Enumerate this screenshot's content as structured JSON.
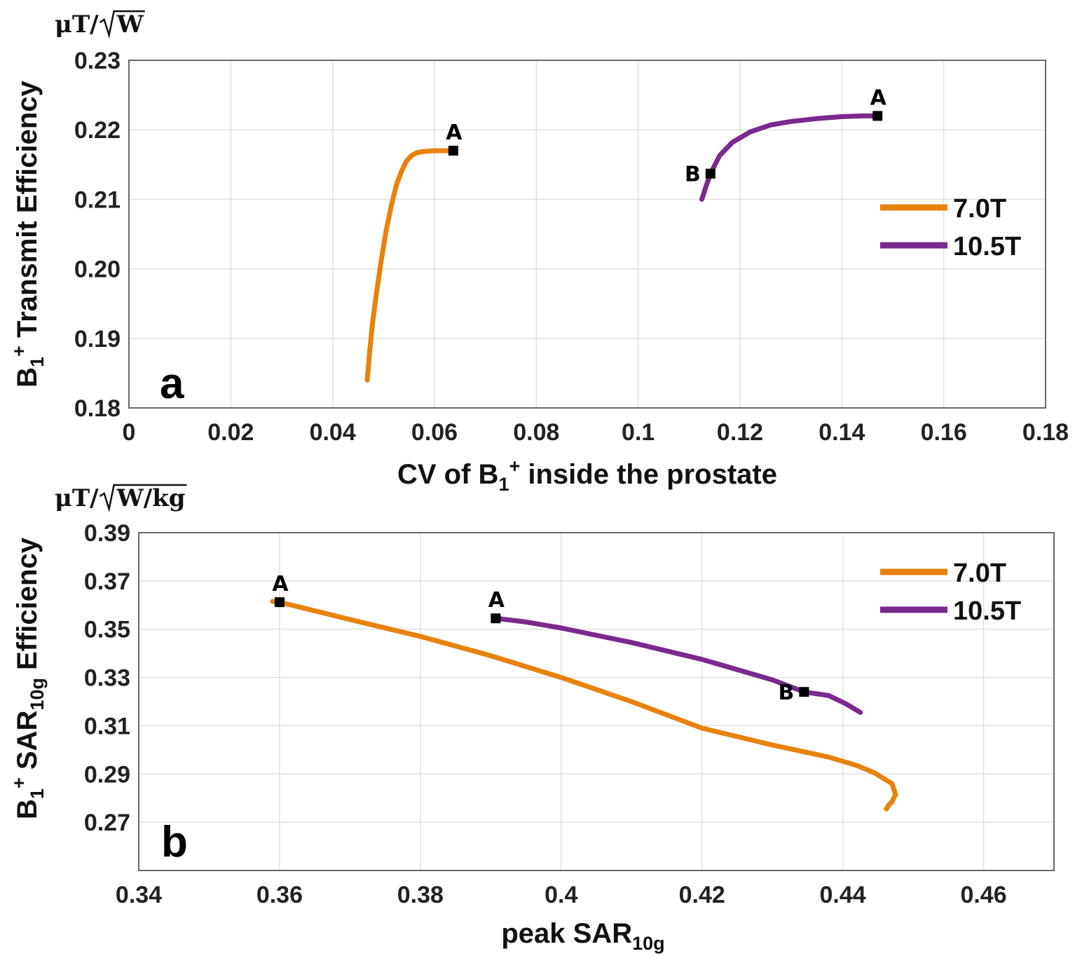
{
  "chart_data": [
    {
      "type": "line",
      "panel_label": "a",
      "xlabel": {
        "pre": "CV of B",
        "sub": "1",
        "sup": "+",
        "post": " inside the prostate"
      },
      "ylabel": {
        "pre": "B",
        "sub": "1",
        "sup": "+",
        "post": " Transmit Efficiency"
      },
      "y_unit": {
        "pre": "μT/",
        "radicand": "W"
      },
      "xlim": [
        0,
        0.18
      ],
      "ylim": [
        0.18,
        0.23
      ],
      "xticks": [
        0,
        0.02,
        0.04,
        0.06,
        0.08,
        0.1,
        0.12,
        0.14,
        0.16,
        0.18
      ],
      "xtick_labels": [
        "0",
        "0.02",
        "0.04",
        "0.06",
        "0.08",
        "0.1",
        "0.12",
        "0.14",
        "0.16",
        "0.18"
      ],
      "yticks": [
        0.18,
        0.19,
        0.2,
        0.21,
        0.22,
        0.23
      ],
      "ytick_labels": [
        "0.18",
        "0.19",
        "0.20",
        "0.21",
        "0.22",
        "0.23"
      ],
      "grid": true,
      "legend_position": "right",
      "series": [
        {
          "name": "7.0T",
          "color": "#E8820C",
          "x": [
            0.0468,
            0.0472,
            0.0478,
            0.0486,
            0.0495,
            0.0505,
            0.0515,
            0.0525,
            0.0535,
            0.0545,
            0.0555,
            0.0565,
            0.058,
            0.06,
            0.062,
            0.0637
          ],
          "y": [
            0.184,
            0.1875,
            0.192,
            0.1965,
            0.201,
            0.2055,
            0.209,
            0.212,
            0.214,
            0.2155,
            0.2163,
            0.2167,
            0.2169,
            0.217,
            0.217,
            0.217
          ],
          "markers": [
            {
              "label": "A",
              "x": 0.0637,
              "y": 0.217
            }
          ]
        },
        {
          "name": "10.5T",
          "color": "#7A2A8C",
          "x": [
            0.1125,
            0.1133,
            0.1142,
            0.116,
            0.1185,
            0.122,
            0.126,
            0.13,
            0.135,
            0.14,
            0.144,
            0.147
          ],
          "y": [
            0.21,
            0.2118,
            0.2137,
            0.2163,
            0.2182,
            0.2197,
            0.2207,
            0.2212,
            0.2216,
            0.2219,
            0.222,
            0.222
          ],
          "markers": [
            {
              "label": "A",
              "x": 0.147,
              "y": 0.222
            },
            {
              "label": "B",
              "x": 0.1142,
              "y": 0.2137
            }
          ]
        }
      ]
    },
    {
      "type": "line",
      "panel_label": "b",
      "xlabel": {
        "pre": "peak SAR",
        "sub": "10g",
        "sup": "",
        "post": ""
      },
      "ylabel": {
        "pre": "B",
        "sub": "1",
        "sup": "+",
        "mid": " SAR",
        "sub2": "10g",
        "post": " Efficiency"
      },
      "y_unit": {
        "pre": "μT/",
        "radicand": "W/kg"
      },
      "xlim": [
        0.34,
        0.47
      ],
      "ylim": [
        0.25,
        0.39
      ],
      "xticks": [
        0.34,
        0.36,
        0.38,
        0.4,
        0.42,
        0.44,
        0.46
      ],
      "xtick_labels": [
        "0.34",
        "0.36",
        "0.38",
        "0.4",
        "0.42",
        "0.44",
        "0.46"
      ],
      "yticks": [
        0.27,
        0.29,
        0.31,
        0.33,
        0.35,
        0.37,
        0.39
      ],
      "ytick_labels": [
        "0.27",
        "0.29",
        "0.31",
        "0.33",
        "0.35",
        "0.37",
        "0.39"
      ],
      "grid": true,
      "legend_position": "top-right",
      "series": [
        {
          "name": "7.0T",
          "color": "#E8820C",
          "x": [
            0.359,
            0.36,
            0.37,
            0.38,
            0.39,
            0.4,
            0.41,
            0.42,
            0.43,
            0.438,
            0.442,
            0.4445,
            0.447,
            0.4475,
            0.447,
            0.4465,
            0.4462
          ],
          "y": [
            0.3615,
            0.3612,
            0.354,
            0.347,
            0.339,
            0.33,
            0.32,
            0.309,
            0.302,
            0.297,
            0.2935,
            0.2905,
            0.286,
            0.2815,
            0.2785,
            0.277,
            0.2755
          ],
          "markers": [
            {
              "label": "A",
              "x": 0.36,
              "y": 0.3612
            }
          ]
        },
        {
          "name": "10.5T",
          "color": "#7A2A8C",
          "x": [
            0.3907,
            0.395,
            0.4,
            0.41,
            0.42,
            0.43,
            0.4345,
            0.438,
            0.4405,
            0.4425
          ],
          "y": [
            0.3545,
            0.353,
            0.3505,
            0.3445,
            0.3375,
            0.329,
            0.324,
            0.3225,
            0.319,
            0.3155
          ],
          "markers": [
            {
              "label": "A",
              "x": 0.3907,
              "y": 0.3545
            },
            {
              "label": "B",
              "x": 0.4345,
              "y": 0.324
            }
          ]
        }
      ]
    }
  ]
}
